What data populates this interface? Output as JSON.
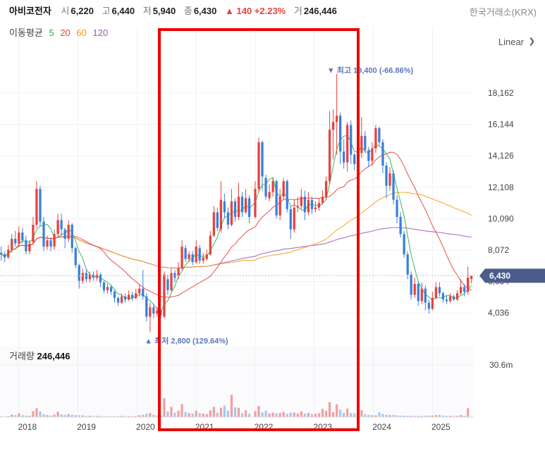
{
  "header": {
    "name": "아비코전자",
    "open_label": "시",
    "open": "6,220",
    "high_label": "고",
    "high": "6,440",
    "low_label": "저",
    "low": "5,940",
    "close_label": "종",
    "close": "6,430",
    "change": "▲ 140 +2.23%",
    "volume_label": "거",
    "volume": "246,446",
    "exchange": "한국거래소(KRX)"
  },
  "moving_average": {
    "label": "이동평균",
    "periods": [
      {
        "period": "5",
        "color": "#2bb34a"
      },
      {
        "period": "20",
        "color": "#e8413e"
      },
      {
        "period": "60",
        "color": "#f39c12"
      },
      {
        "period": "120",
        "color": "#9b59b6"
      }
    ]
  },
  "scale_mode": "Linear",
  "volume_panel": {
    "label": "거래량",
    "value": "246,446"
  },
  "colors": {
    "up": "#e8413e",
    "down": "#3a7fdc",
    "up_vol": "#f2a0a0",
    "down_vol": "#a8c8f0",
    "highlight": "#ee0000",
    "last_price_bg": "#4a5d8c"
  },
  "chart_data": {
    "type": "candlestick",
    "y_ticks": [
      "18,162",
      "16,144",
      "14,126",
      "12,108",
      "10,090",
      "8,072",
      "6,054",
      "4,036"
    ],
    "y_tick_values": [
      18162,
      16144,
      14126,
      12108,
      10090,
      8072,
      6054,
      4036
    ],
    "ylim": [
      2600,
      20600
    ],
    "x_ticks": [
      "2018",
      "2019",
      "2020",
      "2021",
      "2022",
      "2023",
      "2024",
      "2025"
    ],
    "x_tick_values": [
      2018.0,
      2019.0,
      2020.0,
      2021.0,
      2022.0,
      2023.0,
      2024.0,
      2025.0
    ],
    "xlim": [
      2017.68,
      2025.7
    ],
    "last_price": "6,430",
    "last_price_value": 6430,
    "volume_tick": "30.6m",
    "volume_tick_value": 30600000,
    "max_annotation": {
      "text": "▼ 최고 19,400 (-66.86%)",
      "value": 19400,
      "t": 2023.24
    },
    "min_annotation": {
      "text": "▲ 최저 2,800 (129.64%)",
      "value": 2800,
      "t": 2020.2
    },
    "candles": [
      [
        2017.7,
        7900,
        7800,
        8300,
        7400,
        400000
      ],
      [
        2017.76,
        7800,
        7600,
        8000,
        7300,
        300000
      ],
      [
        2017.82,
        7600,
        8100,
        8400,
        7500,
        500000
      ],
      [
        2017.88,
        8100,
        8800,
        9100,
        7900,
        1500000
      ],
      [
        2017.94,
        8800,
        8500,
        9300,
        8300,
        1200000
      ],
      [
        2018.0,
        8500,
        9200,
        9600,
        8300,
        2200000
      ],
      [
        2018.06,
        9200,
        8700,
        9500,
        8500,
        1100000
      ],
      [
        2018.12,
        8700,
        8000,
        9000,
        7800,
        900000
      ],
      [
        2018.18,
        8000,
        8500,
        8700,
        7800,
        800000
      ],
      [
        2018.24,
        8600,
        9700,
        10200,
        8400,
        3500000
      ],
      [
        2018.3,
        9700,
        12000,
        12500,
        9500,
        5200000
      ],
      [
        2018.36,
        12000,
        9900,
        12200,
        9600,
        3300000
      ],
      [
        2018.42,
        9900,
        8300,
        10200,
        8000,
        1700000
      ],
      [
        2018.48,
        8300,
        8700,
        9000,
        8100,
        1200000
      ],
      [
        2018.54,
        8700,
        8300,
        8900,
        8000,
        900000
      ],
      [
        2018.6,
        8300,
        9100,
        9400,
        8100,
        1500000
      ],
      [
        2018.66,
        9100,
        10000,
        10400,
        8900,
        3100000
      ],
      [
        2018.72,
        10000,
        9400,
        10400,
        9000,
        1600000
      ],
      [
        2018.78,
        9400,
        8800,
        9500,
        8200,
        1300000
      ],
      [
        2018.84,
        8800,
        9700,
        10000,
        8600,
        1800000
      ],
      [
        2018.9,
        9700,
        8200,
        9800,
        7900,
        1400000
      ],
      [
        2018.96,
        8200,
        7100,
        8300,
        6900,
        1200000
      ],
      [
        2019.02,
        7100,
        6100,
        7200,
        5600,
        1100000
      ],
      [
        2019.08,
        6100,
        6600,
        6900,
        5900,
        1000000
      ],
      [
        2019.14,
        6600,
        6200,
        6800,
        6000,
        700000
      ],
      [
        2019.2,
        6200,
        6500,
        6700,
        6000,
        800000
      ],
      [
        2019.26,
        6500,
        6300,
        6700,
        6100,
        600000
      ],
      [
        2019.32,
        6300,
        6500,
        6800,
        6100,
        700000
      ],
      [
        2019.38,
        6500,
        6000,
        6600,
        5700,
        600000
      ],
      [
        2019.44,
        6000,
        5500,
        6100,
        5300,
        500000
      ],
      [
        2019.5,
        5500,
        5700,
        5900,
        5300,
        500000
      ],
      [
        2019.56,
        5700,
        5400,
        5800,
        5200,
        400000
      ],
      [
        2019.62,
        5400,
        5000,
        5500,
        4700,
        500000
      ],
      [
        2019.68,
        5000,
        4700,
        5100,
        4500,
        600000
      ],
      [
        2019.74,
        4700,
        5100,
        5300,
        4600,
        700000
      ],
      [
        2019.8,
        5100,
        4900,
        5300,
        4700,
        500000
      ],
      [
        2019.86,
        4900,
        5200,
        5500,
        4800,
        600000
      ],
      [
        2019.92,
        5200,
        5000,
        5400,
        4800,
        500000
      ],
      [
        2019.98,
        5000,
        5300,
        5600,
        4900,
        600000
      ],
      [
        2020.04,
        5300,
        5600,
        5900,
        5100,
        1100000
      ],
      [
        2020.1,
        5600,
        5100,
        6800,
        4900,
        1400000
      ],
      [
        2020.16,
        5100,
        3800,
        5300,
        3500,
        2000000
      ],
      [
        2020.22,
        3800,
        4400,
        4700,
        2800,
        2400000
      ],
      [
        2020.28,
        4400,
        4000,
        4600,
        3700,
        1300000
      ],
      [
        2020.34,
        4000,
        4200,
        4400,
        3800,
        900000
      ],
      [
        2020.4,
        4200,
        3900,
        4300,
        3700,
        800000
      ],
      [
        2020.46,
        3800,
        6500,
        6700,
        3700,
        11000000
      ],
      [
        2020.52,
        6200,
        5500,
        6500,
        5200,
        3300000
      ],
      [
        2020.58,
        5500,
        6600,
        6900,
        5400,
        6000000
      ],
      [
        2020.64,
        6600,
        6300,
        6800,
        6000,
        2500000
      ],
      [
        2020.7,
        6400,
        6900,
        7300,
        6200,
        3800000
      ],
      [
        2020.76,
        6900,
        8300,
        8700,
        6800,
        7700000
      ],
      [
        2020.82,
        8200,
        7500,
        8400,
        7300,
        3000000
      ],
      [
        2020.88,
        7500,
        7800,
        8000,
        7300,
        2400000
      ],
      [
        2020.94,
        7800,
        7300,
        8000,
        7100,
        2000000
      ],
      [
        2021.0,
        7300,
        8300,
        8700,
        7200,
        3800000
      ],
      [
        2021.06,
        8200,
        7400,
        8400,
        7200,
        2300000
      ],
      [
        2021.12,
        7400,
        7600,
        7900,
        7200,
        2100000
      ],
      [
        2021.18,
        7500,
        7800,
        8100,
        7400,
        1800000
      ],
      [
        2021.24,
        7800,
        9000,
        9300,
        7700,
        3900000
      ],
      [
        2021.3,
        9000,
        10500,
        10900,
        8900,
        6000000
      ],
      [
        2021.36,
        10500,
        9500,
        10800,
        9300,
        2500000
      ],
      [
        2021.42,
        9400,
        11300,
        12500,
        9200,
        5500000
      ],
      [
        2021.48,
        11200,
        10500,
        11700,
        10100,
        6700000
      ],
      [
        2021.54,
        10500,
        9700,
        10800,
        9400,
        3800000
      ],
      [
        2021.6,
        9700,
        11200,
        12000,
        9600,
        13000000
      ],
      [
        2021.66,
        11200,
        10200,
        11400,
        9900,
        5700000
      ],
      [
        2021.72,
        10200,
        11500,
        12400,
        10000,
        5400000
      ],
      [
        2021.78,
        11500,
        10500,
        11800,
        10200,
        2300000
      ],
      [
        2021.84,
        10500,
        11400,
        12000,
        10400,
        4000000
      ],
      [
        2021.9,
        11400,
        10200,
        11600,
        9800,
        2000000
      ],
      [
        2022.0,
        10200,
        12000,
        12500,
        10100,
        3500000
      ],
      [
        2022.06,
        12000,
        15000,
        15300,
        11800,
        6500000
      ],
      [
        2022.12,
        15000,
        12800,
        15100,
        11900,
        2700000
      ],
      [
        2022.18,
        12700,
        11500,
        12900,
        11300,
        3700000
      ],
      [
        2022.24,
        11400,
        11800,
        12300,
        11200,
        2100000
      ],
      [
        2022.3,
        11800,
        12500,
        12700,
        11500,
        2600000
      ],
      [
        2022.36,
        12500,
        10300,
        12600,
        10100,
        2200000
      ],
      [
        2022.42,
        10300,
        11500,
        12000,
        10000,
        2400000
      ],
      [
        2022.48,
        11500,
        12500,
        12700,
        11300,
        3000000
      ],
      [
        2022.54,
        12500,
        10700,
        12600,
        10500,
        1900000
      ],
      [
        2022.6,
        10700,
        9400,
        10900,
        8800,
        2600000
      ],
      [
        2022.66,
        9400,
        10800,
        11300,
        9200,
        2600000
      ],
      [
        2022.72,
        10800,
        10900,
        11500,
        10500,
        2100000
      ],
      [
        2022.78,
        10900,
        11500,
        12000,
        10700,
        3300000
      ],
      [
        2022.84,
        11500,
        10500,
        11900,
        10000,
        2100000
      ],
      [
        2022.9,
        10500,
        11300,
        11800,
        10300,
        2500000
      ],
      [
        2022.96,
        11300,
        10700,
        11500,
        10400,
        1900000
      ],
      [
        2023.02,
        10700,
        10800,
        11200,
        10500,
        2000000
      ],
      [
        2023.08,
        10800,
        11100,
        11400,
        10600,
        2300000
      ],
      [
        2023.14,
        11100,
        11500,
        11900,
        11000,
        4800000
      ],
      [
        2023.2,
        11500,
        12500,
        12800,
        11300,
        3700000
      ],
      [
        2023.26,
        12500,
        15800,
        17000,
        12300,
        8700000
      ],
      [
        2023.32,
        15800,
        16300,
        17100,
        13900,
        2800000
      ],
      [
        2023.38,
        16300,
        16700,
        19400,
        14200,
        7500000
      ],
      [
        2023.44,
        16700,
        14400,
        16900,
        13600,
        4300000
      ],
      [
        2023.5,
        14400,
        13700,
        15200,
        13300,
        2500000
      ],
      [
        2023.56,
        13700,
        16100,
        16300,
        13100,
        5000000
      ],
      [
        2023.62,
        16100,
        14200,
        16400,
        13600,
        2400000
      ],
      [
        2023.68,
        14200,
        13600,
        14300,
        13200,
        2100000
      ],
      [
        2023.74,
        13600,
        14300,
        15300,
        13300,
        2300000
      ],
      [
        2023.8,
        14300,
        15400,
        16600,
        14000,
        4100000
      ],
      [
        2023.86,
        15400,
        14500,
        15700,
        14300,
        1600000
      ],
      [
        2023.92,
        14500,
        13800,
        14700,
        13400,
        1300000
      ],
      [
        2023.98,
        13800,
        14600,
        15000,
        13500,
        1100000
      ],
      [
        2024.04,
        14600,
        15900,
        16100,
        14300,
        1000000
      ],
      [
        2024.1,
        15900,
        15000,
        16000,
        14800,
        2800000
      ],
      [
        2024.16,
        15000,
        13500,
        15200,
        13000,
        1900000
      ],
      [
        2024.22,
        13500,
        12200,
        13700,
        11400,
        1400000
      ],
      [
        2024.28,
        12200,
        13000,
        13400,
        11900,
        1200000
      ],
      [
        2024.34,
        13000,
        11300,
        13200,
        11000,
        1300000
      ],
      [
        2024.4,
        11300,
        10200,
        11600,
        9800,
        1000000
      ],
      [
        2024.46,
        10200,
        9100,
        10500,
        8900,
        900000
      ],
      [
        2024.52,
        9100,
        7800,
        9300,
        7600,
        800000
      ],
      [
        2024.58,
        7800,
        6500,
        8000,
        6200,
        700000
      ],
      [
        2024.64,
        6500,
        5200,
        6700,
        4900,
        800000
      ],
      [
        2024.7,
        5200,
        5900,
        6300,
        5000,
        600000
      ],
      [
        2024.76,
        5900,
        4800,
        6000,
        4500,
        700000
      ],
      [
        2024.82,
        4800,
        5600,
        6000,
        4600,
        600000
      ],
      [
        2024.88,
        5600,
        4700,
        5800,
        4200,
        800000
      ],
      [
        2024.94,
        4700,
        4300,
        4900,
        4000,
        900000
      ],
      [
        2025.0,
        4300,
        5000,
        5400,
        4200,
        900000
      ],
      [
        2025.06,
        5000,
        5700,
        6000,
        4900,
        1200000
      ],
      [
        2025.12,
        5700,
        5300,
        6000,
        5100,
        1300000
      ],
      [
        2025.18,
        5300,
        4900,
        5400,
        4700,
        900000
      ],
      [
        2025.24,
        4900,
        4800,
        5200,
        4600,
        700000
      ],
      [
        2025.3,
        4800,
        5100,
        5300,
        4700,
        800000
      ],
      [
        2025.36,
        5100,
        4900,
        5200,
        4800,
        600000
      ],
      [
        2025.42,
        4900,
        5300,
        5500,
        4800,
        700000
      ],
      [
        2025.48,
        5300,
        5700,
        6200,
        5200,
        1200000
      ],
      [
        2025.54,
        5700,
        5400,
        5900,
        5100,
        800000
      ],
      [
        2025.6,
        5400,
        6300,
        7000,
        5200,
        5200000
      ],
      [
        2025.66,
        6220,
        6430,
        6440,
        5940,
        246446
      ]
    ]
  }
}
